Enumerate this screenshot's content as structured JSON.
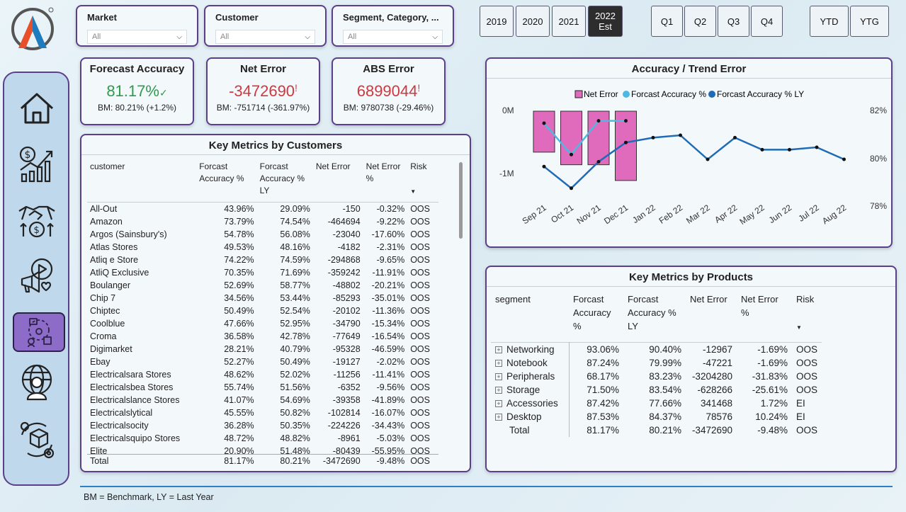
{
  "filters": {
    "market": {
      "label": "Market",
      "value": "All"
    },
    "customer": {
      "label": "Customer",
      "value": "All"
    },
    "segment": {
      "label": "Segment, Category, ...",
      "value": "All"
    }
  },
  "years": [
    "2019",
    "2020",
    "2021"
  ],
  "year_active": {
    "line1": "2022",
    "line2": "Est"
  },
  "quarters": [
    "Q1",
    "Q2",
    "Q3",
    "Q4"
  ],
  "periods": [
    "YTD",
    "YTG"
  ],
  "kpis": {
    "accuracy": {
      "title": "Forecast Accuracy",
      "value": "81.17%",
      "mark": "✓",
      "sub": "BM: 80.21% (+1.2%)",
      "color": "#2e9b4e"
    },
    "net_error": {
      "title": "Net Error",
      "value": "-3472690",
      "mark": "!",
      "sub": "BM: -751714 (-361.97%)",
      "color": "#d0383f"
    },
    "abs_error": {
      "title": "ABS Error",
      "value": "6899044",
      "mark": "!",
      "sub": "BM: 9780738 (-29.46%)",
      "color": "#d0383f"
    }
  },
  "customers_table": {
    "title": "Key Metrics by Customers",
    "headers": [
      "customer",
      "Forcast Accuracy %",
      "Forcast Accuracy % LY",
      "Net Error",
      "Net Error %",
      "Risk"
    ],
    "rows": [
      [
        "All-Out",
        "43.96%",
        "29.09%",
        "-150",
        "-0.32%",
        "OOS"
      ],
      [
        "Amazon",
        "73.79%",
        "74.54%",
        "-464694",
        "-9.22%",
        "OOS"
      ],
      [
        "Argos (Sainsbury's)",
        "54.78%",
        "56.08%",
        "-23040",
        "-17.60%",
        "OOS"
      ],
      [
        "Atlas Stores",
        "49.53%",
        "48.16%",
        "-4182",
        "-2.31%",
        "OOS"
      ],
      [
        "Atliq e Store",
        "74.22%",
        "74.59%",
        "-294868",
        "-9.65%",
        "OOS"
      ],
      [
        "AtliQ Exclusive",
        "70.35%",
        "71.69%",
        "-359242",
        "-11.91%",
        "OOS"
      ],
      [
        "Boulanger",
        "52.69%",
        "58.77%",
        "-48802",
        "-20.21%",
        "OOS"
      ],
      [
        "Chip 7",
        "34.56%",
        "53.44%",
        "-85293",
        "-35.01%",
        "OOS"
      ],
      [
        "Chiptec",
        "50.49%",
        "52.54%",
        "-20102",
        "-11.36%",
        "OOS"
      ],
      [
        "Coolblue",
        "47.66%",
        "52.95%",
        "-34790",
        "-15.34%",
        "OOS"
      ],
      [
        "Croma",
        "36.58%",
        "42.78%",
        "-77649",
        "-16.54%",
        "OOS"
      ],
      [
        "Digimarket",
        "28.21%",
        "40.79%",
        "-95328",
        "-46.59%",
        "OOS"
      ],
      [
        "Ebay",
        "52.27%",
        "50.49%",
        "-19127",
        "-2.02%",
        "OOS"
      ],
      [
        "Electricalsara Stores",
        "48.62%",
        "52.02%",
        "-11256",
        "-11.41%",
        "OOS"
      ],
      [
        "Electricalsbea Stores",
        "55.74%",
        "51.56%",
        "-6352",
        "-9.56%",
        "OOS"
      ],
      [
        "Electricalslance Stores",
        "41.07%",
        "54.69%",
        "-39358",
        "-41.89%",
        "OOS"
      ],
      [
        "Electricalslytical",
        "45.55%",
        "50.82%",
        "-102814",
        "-16.07%",
        "OOS"
      ],
      [
        "Electricalsocity",
        "36.28%",
        "50.35%",
        "-224226",
        "-34.43%",
        "OOS"
      ],
      [
        "Electricalsquipo Stores",
        "48.72%",
        "48.82%",
        "-8961",
        "-5.03%",
        "OOS"
      ],
      [
        "Elite",
        "20.90%",
        "51.48%",
        "-80439",
        "-55.95%",
        "OOS"
      ]
    ],
    "total": [
      "Total",
      "81.17%",
      "80.21%",
      "-3472690",
      "-9.48%",
      "OOS"
    ]
  },
  "trend_chart": {
    "title": "Accuracy / Trend Error",
    "legend": [
      "Net Error",
      "Forcast Accuracy %",
      "Forcast Accuracy % LY"
    ],
    "left_ticks": [
      "0M",
      "-1M"
    ],
    "right_ticks": [
      "82%",
      "80%",
      "78%"
    ]
  },
  "chart_data": {
    "type": "bar",
    "title": "Accuracy / Trend Error",
    "categories": [
      "Sep 21",
      "Oct 21",
      "Nov 21",
      "Dec 21",
      "Jan 22",
      "Feb 22",
      "Mar 22",
      "Apr 22",
      "May 22",
      "Jun 22",
      "Jul 22",
      "Aug 22"
    ],
    "series": [
      {
        "name": "Net Error",
        "type": "bar",
        "axis": "left",
        "values": [
          -0.65,
          -0.85,
          -0.85,
          -1.1,
          null,
          null,
          null,
          null,
          null,
          null,
          null,
          null
        ]
      },
      {
        "name": "Forcast Accuracy %",
        "type": "line",
        "axis": "right",
        "values": [
          81.5,
          80.2,
          81.6,
          81.6,
          null,
          null,
          null,
          null,
          null,
          null,
          null,
          null
        ]
      },
      {
        "name": "Forcast Accuracy % LY",
        "type": "line",
        "axis": "right",
        "values": [
          79.7,
          78.8,
          79.9,
          80.7,
          80.9,
          81.0,
          80.0,
          80.9,
          80.4,
          80.4,
          80.5,
          80.0
        ]
      }
    ],
    "left_range": [
      -1.2,
      0.05
    ],
    "right_range": [
      78,
      82
    ]
  },
  "products_table": {
    "title": "Key Metrics by Products",
    "headers": [
      "segment",
      "Forcast Accuracy %",
      "Forcast Accuracy % LY",
      "Net Error",
      "Net Error %",
      "Risk"
    ],
    "rows": [
      [
        "Networking",
        "93.06%",
        "90.40%",
        "-12967",
        "-1.69%",
        "OOS"
      ],
      [
        "Notebook",
        "87.24%",
        "79.99%",
        "-47221",
        "-1.69%",
        "OOS"
      ],
      [
        "Peripherals",
        "68.17%",
        "83.23%",
        "-3204280",
        "-31.83%",
        "OOS"
      ],
      [
        "Storage",
        "71.50%",
        "83.54%",
        "-628266",
        "-25.61%",
        "OOS"
      ],
      [
        "Accessories",
        "87.42%",
        "77.66%",
        "341468",
        "1.72%",
        "EI"
      ],
      [
        "Desktop",
        "87.53%",
        "84.37%",
        "78576",
        "10.24%",
        "EI"
      ]
    ],
    "total": [
      "Total",
      "81.17%",
      "80.21%",
      "-3472690",
      "-9.48%",
      "OOS"
    ]
  },
  "footer": "BM = Benchmark, LY = Last Year",
  "colors": {
    "accent": "#5b3f8a",
    "bar": "#e06bbd",
    "line_ty": "#4fb8e0",
    "line_ly": "#1f6bb5"
  }
}
